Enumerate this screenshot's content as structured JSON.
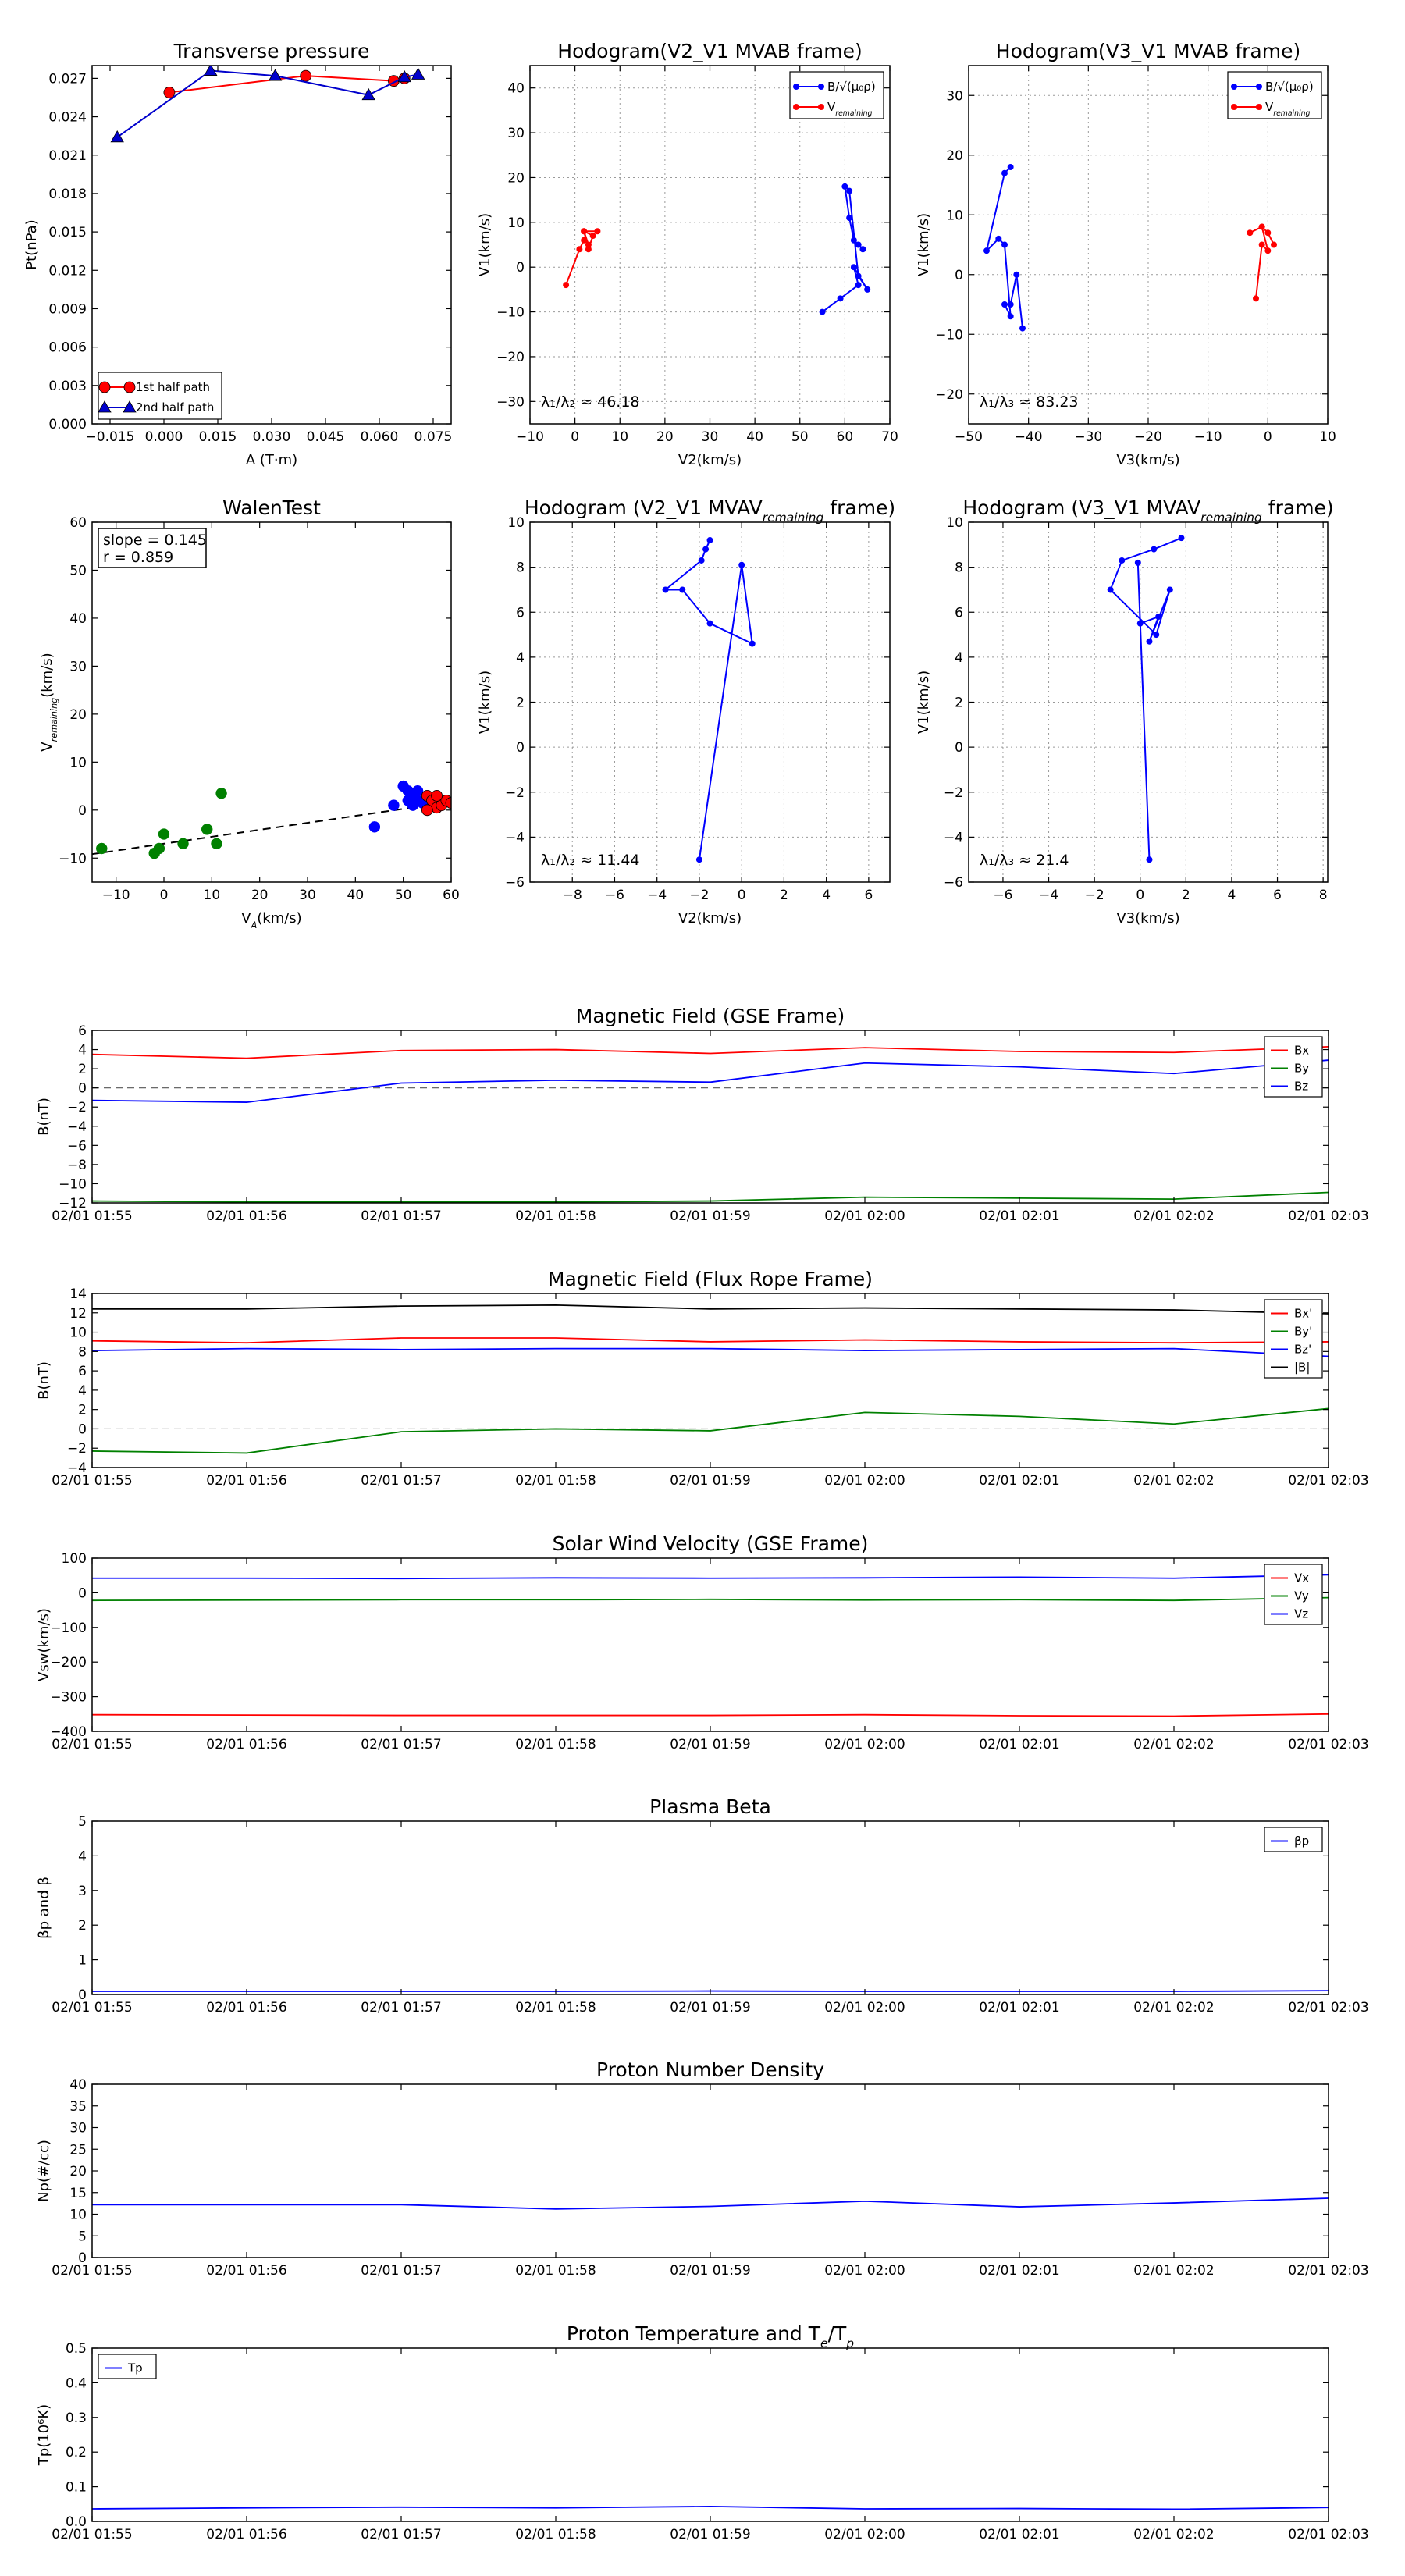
{
  "chart_data": [
    {
      "id": "transverse-pressure",
      "type": "line",
      "title": "Transverse pressure",
      "xlabel": "A (T·m)",
      "ylabel": "Pt(nPa)",
      "xlim": [
        -0.02,
        0.08
      ],
      "ylim": [
        0.0,
        0.028
      ],
      "xticks": [
        -0.015,
        0.0,
        0.015,
        0.03,
        0.045,
        0.06,
        0.075
      ],
      "xtick_labels": [
        "−0.015",
        "0.000",
        "0.015",
        "0.030",
        "0.045",
        "0.060",
        "0.075"
      ],
      "yticks": [
        0.0,
        0.003,
        0.006,
        0.009,
        0.012,
        0.015,
        0.018,
        0.021,
        0.024,
        0.027
      ],
      "ytick_labels": [
        "0.000",
        "0.003",
        "0.006",
        "0.009",
        "0.012",
        "0.015",
        "0.018",
        "0.021",
        "0.024",
        "0.027"
      ],
      "grid": false,
      "legend": "lower-left",
      "series": [
        {
          "name": "1st half path",
          "color": "#ff0000",
          "marker": "circle",
          "x": [
            0.0015,
            0.0395,
            0.064,
            0.067
          ],
          "y": [
            0.0259,
            0.0272,
            0.0268,
            0.027
          ]
        },
        {
          "name": "2nd half path",
          "color": "#0000cc",
          "marker": "triangle",
          "x": [
            0.0708,
            0.067,
            0.057,
            0.031,
            0.013,
            -0.013
          ],
          "y": [
            0.0273,
            0.0271,
            0.0257,
            0.0272,
            0.0276,
            0.0224
          ]
        }
      ]
    },
    {
      "id": "hodogram-v2-v1-mvab",
      "type": "line",
      "title": "Hodogram(V2_V1 MVAB frame)",
      "xlabel": "V2(km/s)",
      "ylabel": "V1(km/s)",
      "xlim": [
        -10,
        70
      ],
      "ylim": [
        -35,
        45
      ],
      "xticks": [
        -10,
        0,
        10,
        20,
        30,
        40,
        50,
        60,
        70
      ],
      "xtick_labels": [
        "−10",
        "0",
        "10",
        "20",
        "30",
        "40",
        "50",
        "60",
        "70"
      ],
      "yticks": [
        -30,
        -20,
        -10,
        0,
        10,
        20,
        30,
        40
      ],
      "ytick_labels": [
        "−30",
        "−20",
        "−10",
        "0",
        "10",
        "20",
        "30",
        "40"
      ],
      "grid": true,
      "legend": "top-right",
      "legend_labels": [
        "B/√(μ₀ρ)",
        "V"
      ],
      "legend_subscripts": [
        "",
        "remaining"
      ],
      "annotation": "λ₁/λ₂ ≈ 46.18",
      "series": [
        {
          "name": "B/√(μ₀ρ)",
          "color": "#0000ff",
          "marker": "dot",
          "x": [
            55,
            59,
            63,
            62,
            65,
            63,
            61,
            60,
            61,
            62,
            63,
            64
          ],
          "y": [
            -10,
            -7,
            -4,
            0,
            -5,
            -2,
            17,
            18,
            11,
            6,
            5,
            4
          ]
        },
        {
          "name": "Vremaining",
          "color": "#ff0000",
          "marker": "dot",
          "x": [
            -2,
            1,
            2,
            3,
            2,
            3,
            4,
            2,
            5
          ],
          "y": [
            -4,
            4,
            6,
            5,
            8,
            4,
            7,
            8,
            8
          ]
        }
      ]
    },
    {
      "id": "hodogram-v3-v1-mvab",
      "type": "line",
      "title": "Hodogram(V3_V1 MVAB frame)",
      "xlabel": "V3(km/s)",
      "ylabel": "V1(km/s)",
      "xlim": [
        -50,
        10
      ],
      "ylim": [
        -25,
        35
      ],
      "xticks": [
        -50,
        -40,
        -30,
        -20,
        -10,
        0,
        10
      ],
      "xtick_labels": [
        "−50",
        "−40",
        "−30",
        "−20",
        "−10",
        "0",
        "10"
      ],
      "yticks": [
        -20,
        -10,
        0,
        10,
        20,
        30
      ],
      "ytick_labels": [
        "−20",
        "−10",
        "0",
        "10",
        "20",
        "30"
      ],
      "grid": true,
      "legend": "top-right",
      "legend_labels": [
        "B/√(μ₀ρ)",
        "V"
      ],
      "legend_subscripts": [
        "",
        "remaining"
      ],
      "annotation": "λ₁/λ₃ ≈ 83.23",
      "series": [
        {
          "name": "B/√(μ₀ρ)",
          "color": "#0000ff",
          "marker": "dot",
          "x": [
            -41,
            -42,
            -43,
            -44,
            -43,
            -44,
            -45,
            -47,
            -44,
            -43
          ],
          "y": [
            -9,
            0,
            -5,
            -5,
            -7,
            5,
            6,
            4,
            17,
            18
          ]
        },
        {
          "name": "Vremaining",
          "color": "#ff0000",
          "marker": "dot",
          "x": [
            -2,
            -1,
            0,
            -1,
            -3,
            -1,
            0,
            1
          ],
          "y": [
            -4,
            5,
            4,
            8,
            7,
            8,
            7,
            5
          ]
        }
      ]
    },
    {
      "id": "walen-test",
      "type": "scatter",
      "title": "WalenTest",
      "xlabel": "V",
      "xlabel_subscript": "A",
      "xlabel_suffix": "(km/s)",
      "ylabel": "V",
      "ylabel_subscript": "remaining",
      "ylabel_suffix": "(km/s)",
      "xlim": [
        -15,
        60
      ],
      "ylim": [
        -15,
        60
      ],
      "xticks": [
        -10,
        0,
        10,
        20,
        30,
        40,
        50,
        60
      ],
      "xtick_labels": [
        "−10",
        "0",
        "10",
        "20",
        "30",
        "40",
        "50",
        "60"
      ],
      "yticks": [
        -10,
        0,
        10,
        20,
        30,
        40,
        50,
        60
      ],
      "ytick_labels": [
        "−10",
        "0",
        "10",
        "20",
        "30",
        "40",
        "50",
        "60"
      ],
      "grid": false,
      "annotation_lines": [
        "slope = 0.145",
        "r = 0.859"
      ],
      "fit_line": {
        "slope": 0.145,
        "intercept": -7.0,
        "color": "#000000",
        "style": "dashed"
      },
      "series": [
        {
          "name": "",
          "color": "#008000",
          "marker": "circle",
          "x": [
            -13,
            -2,
            -1,
            0,
            4,
            9,
            11,
            12
          ],
          "y": [
            -8,
            -9,
            -8,
            -5,
            -7,
            -4,
            -7,
            3.5
          ]
        },
        {
          "name": "",
          "color": "#0000ff",
          "marker": "circle",
          "x": [
            44,
            48,
            50,
            51,
            52,
            53,
            51,
            54,
            53,
            52
          ],
          "y": [
            -3.5,
            1,
            5,
            4,
            3,
            2,
            2,
            1.5,
            4,
            1
          ]
        },
        {
          "name": "",
          "color": "#ff0000",
          "marker": "circle",
          "x": [
            55,
            56,
            57,
            58,
            55,
            59,
            60,
            57
          ],
          "y": [
            3,
            2,
            0.5,
            1,
            0,
            2,
            1.5,
            3
          ]
        }
      ]
    },
    {
      "id": "hodogram-v2-v1-mvav",
      "type": "line",
      "title": "Hodogram (V2_V1 MVAV",
      "title_subscript": "remaining",
      "title_suffix": " frame)",
      "xlabel": "V2(km/s)",
      "ylabel": "V1(km/s)",
      "xlim": [
        -10,
        7
      ],
      "ylim": [
        -6,
        10
      ],
      "xticks": [
        -8,
        -6,
        -4,
        -2,
        0,
        2,
        4,
        6
      ],
      "xtick_labels": [
        "−8",
        "−6",
        "−4",
        "−2",
        "0",
        "2",
        "4",
        "6"
      ],
      "yticks": [
        -6,
        -4,
        -2,
        0,
        2,
        4,
        6,
        8,
        10
      ],
      "ytick_labels": [
        "−6",
        "−4",
        "−2",
        "0",
        "2",
        "4",
        "6",
        "8",
        "10"
      ],
      "grid": true,
      "annotation": "λ₁/λ₂ ≈ 11.44",
      "series": [
        {
          "name": "",
          "color": "#0000ff",
          "marker": "dot",
          "x": [
            -2,
            0,
            0.5,
            -1.5,
            -2.8,
            -3.6,
            -1.9,
            -1.7,
            -1.5
          ],
          "y": [
            -5,
            8.1,
            4.6,
            5.5,
            7.0,
            7.0,
            8.3,
            8.8,
            9.2
          ]
        }
      ]
    },
    {
      "id": "hodogram-v3-v1-mvav",
      "type": "line",
      "title": "Hodogram (V3_V1 MVAV",
      "title_subscript": "remaining",
      "title_suffix": " frame)",
      "xlabel": "V3(km/s)",
      "ylabel": "V1(km/s)",
      "xlim": [
        -7.5,
        8.2
      ],
      "ylim": [
        -6,
        10
      ],
      "xticks": [
        -6,
        -4,
        -2,
        0,
        2,
        4,
        6,
        8
      ],
      "xtick_labels": [
        "−6",
        "−4",
        "−2",
        "0",
        "2",
        "4",
        "6",
        "8"
      ],
      "yticks": [
        -6,
        -4,
        -2,
        0,
        2,
        4,
        6,
        8,
        10
      ],
      "ytick_labels": [
        "−6",
        "−4",
        "−2",
        "0",
        "2",
        "4",
        "6",
        "8",
        "10"
      ],
      "grid": true,
      "annotation": "λ₁/λ₃ ≈ 21.4",
      "series": [
        {
          "name": "",
          "color": "#0000ff",
          "marker": "dot",
          "x": [
            0.4,
            -0.1,
            0.0,
            0.8,
            0.4,
            1.3,
            0.7,
            -1.3,
            -0.8,
            0.6,
            1.8
          ],
          "y": [
            -5,
            8.2,
            5.5,
            5.8,
            4.7,
            7.0,
            5.0,
            7.0,
            8.3,
            8.8,
            9.3
          ]
        }
      ]
    },
    {
      "id": "magnetic-field-gse",
      "type": "line",
      "title": "Magnetic Field (GSE Frame)",
      "xlabel": "",
      "ylabel": "B(nT)",
      "x": [
        0,
        1,
        2,
        3,
        4,
        5,
        6,
        7,
        8
      ],
      "xtick_labels": [
        "02/01 01:55",
        "02/01 01:56",
        "02/01 01:57",
        "02/01 01:58",
        "02/01 01:59",
        "02/01 02:00",
        "02/01 02:01",
        "02/01 02:02",
        "02/01 02:03"
      ],
      "ylim": [
        -12,
        6
      ],
      "yticks": [
        -12,
        -10,
        -8,
        -6,
        -4,
        -2,
        0,
        2,
        4,
        6
      ],
      "ytick_labels": [
        "−12",
        "−10",
        "−8",
        "−6",
        "−4",
        "−2",
        "0",
        "2",
        "4",
        "6"
      ],
      "zero_line": true,
      "legend": "top-right",
      "series": [
        {
          "name": "Bx",
          "color": "#ff0000",
          "values": [
            3.5,
            3.1,
            3.9,
            4.0,
            3.6,
            4.2,
            3.8,
            3.7,
            4.3
          ]
        },
        {
          "name": "By",
          "color": "#008000",
          "values": [
            -11.8,
            -11.9,
            -11.9,
            -11.9,
            -11.8,
            -11.4,
            -11.5,
            -11.6,
            -10.9
          ]
        },
        {
          "name": "Bz",
          "color": "#0000ff",
          "values": [
            -1.3,
            -1.5,
            0.5,
            0.8,
            0.6,
            2.6,
            2.2,
            1.5,
            2.9
          ]
        }
      ]
    },
    {
      "id": "magnetic-field-flux-rope",
      "type": "line",
      "title": "Magnetic Field (Flux Rope Frame)",
      "xlabel": "",
      "ylabel": "B(nT)",
      "x": [
        0,
        1,
        2,
        3,
        4,
        5,
        6,
        7,
        8
      ],
      "xtick_labels": [
        "02/01 01:55",
        "02/01 01:56",
        "02/01 01:57",
        "02/01 01:58",
        "02/01 01:59",
        "02/01 02:00",
        "02/01 02:01",
        "02/01 02:02",
        "02/01 02:03"
      ],
      "ylim": [
        -4,
        14
      ],
      "yticks": [
        -4,
        -2,
        0,
        2,
        4,
        6,
        8,
        10,
        12,
        14
      ],
      "ytick_labels": [
        "−4",
        "−2",
        "0",
        "2",
        "4",
        "6",
        "8",
        "10",
        "12",
        "14"
      ],
      "zero_line": true,
      "legend": "top-right",
      "series": [
        {
          "name": "Bx'",
          "color": "#ff0000",
          "values": [
            9.1,
            8.9,
            9.4,
            9.4,
            9.0,
            9.2,
            9.0,
            8.9,
            9.0
          ]
        },
        {
          "name": "By'",
          "color": "#008000",
          "values": [
            -2.3,
            -2.5,
            -0.3,
            0.0,
            -0.2,
            1.7,
            1.3,
            0.5,
            2.1
          ]
        },
        {
          "name": "Bz'",
          "color": "#0000ff",
          "values": [
            8.1,
            8.3,
            8.2,
            8.3,
            8.3,
            8.1,
            8.2,
            8.3,
            7.5
          ]
        },
        {
          "name": "|B|",
          "color": "#000000",
          "values": [
            12.4,
            12.4,
            12.7,
            12.8,
            12.4,
            12.5,
            12.4,
            12.3,
            11.9
          ]
        }
      ]
    },
    {
      "id": "solar-wind-velocity",
      "type": "line",
      "title": "Solar Wind Velocity (GSE Frame)",
      "xlabel": "",
      "ylabel": "Vsw(km/s)",
      "x": [
        0,
        1,
        2,
        3,
        4,
        5,
        6,
        7,
        8
      ],
      "xtick_labels": [
        "02/01 01:55",
        "02/01 01:56",
        "02/01 01:57",
        "02/01 01:58",
        "02/01 01:59",
        "02/01 02:00",
        "02/01 02:01",
        "02/01 02:02",
        "02/01 02:03"
      ],
      "ylim": [
        -400,
        100
      ],
      "yticks": [
        -400,
        -300,
        -200,
        -100,
        0,
        100
      ],
      "ytick_labels": [
        "−400",
        "−300",
        "−200",
        "−100",
        "0",
        "100"
      ],
      "legend": "top-right",
      "series": [
        {
          "name": "Vx",
          "color": "#ff0000",
          "values": [
            -352,
            -353,
            -354,
            -354,
            -354,
            -352,
            -355,
            -356,
            -350
          ]
        },
        {
          "name": "Vy",
          "color": "#008000",
          "values": [
            -22,
            -21,
            -20,
            -20,
            -19,
            -21,
            -20,
            -22,
            -14
          ]
        },
        {
          "name": "Vz",
          "color": "#0000ff",
          "values": [
            42,
            42,
            41,
            43,
            42,
            43,
            45,
            42,
            52
          ]
        }
      ]
    },
    {
      "id": "plasma-beta",
      "type": "line",
      "title": "Plasma Beta",
      "xlabel": "",
      "ylabel": "βp and β",
      "x": [
        0,
        1,
        2,
        3,
        4,
        5,
        6,
        7,
        8
      ],
      "xtick_labels": [
        "02/01 01:55",
        "02/01 01:56",
        "02/01 01:57",
        "02/01 01:58",
        "02/01 01:59",
        "02/01 02:00",
        "02/01 02:01",
        "02/01 02:02",
        "02/01 02:03"
      ],
      "ylim": [
        0,
        5
      ],
      "yticks": [
        0,
        1,
        2,
        3,
        4,
        5
      ],
      "ytick_labels": [
        "0",
        "1",
        "2",
        "3",
        "4",
        "5"
      ],
      "legend": "top-right",
      "series": [
        {
          "name": "βp",
          "color": "#0000ff",
          "values": [
            0.09,
            0.09,
            0.09,
            0.09,
            0.1,
            0.09,
            0.09,
            0.09,
            0.11
          ]
        }
      ]
    },
    {
      "id": "proton-number-density",
      "type": "line",
      "title": "Proton Number Density",
      "xlabel": "",
      "ylabel": "Np(#/cc)",
      "x": [
        0,
        1,
        2,
        3,
        4,
        5,
        6,
        7,
        8
      ],
      "xtick_labels": [
        "02/01 01:55",
        "02/01 01:56",
        "02/01 01:57",
        "02/01 01:58",
        "02/01 01:59",
        "02/01 02:00",
        "02/01 02:01",
        "02/01 02:02",
        "02/01 02:03"
      ],
      "ylim": [
        0,
        40
      ],
      "yticks": [
        0,
        5,
        10,
        15,
        20,
        25,
        30,
        35,
        40
      ],
      "ytick_labels": [
        "0",
        "5",
        "10",
        "15",
        "20",
        "25",
        "30",
        "35",
        "40"
      ],
      "series": [
        {
          "name": "",
          "color": "#0000ff",
          "values": [
            12.2,
            12.2,
            12.2,
            11.2,
            11.8,
            13.0,
            11.7,
            12.6,
            13.7
          ]
        }
      ]
    },
    {
      "id": "proton-temperature",
      "type": "line",
      "title": "Proton Temperature and T",
      "title_sub1": "e",
      "title_mid": "/T",
      "title_sub2": "p",
      "xlabel": "",
      "ylabel": "Tp(10⁶K)",
      "x": [
        0,
        1,
        2,
        3,
        4,
        5,
        6,
        7,
        8
      ],
      "xtick_labels": [
        "02/01 01:55",
        "02/01 01:56",
        "02/01 01:57",
        "02/01 01:58",
        "02/01 01:59",
        "02/01 02:00",
        "02/01 02:01",
        "02/01 02:02",
        "02/01 02:03"
      ],
      "ylim": [
        0,
        0.5
      ],
      "yticks": [
        0.0,
        0.1,
        0.2,
        0.3,
        0.4,
        0.5
      ],
      "ytick_labels": [
        "0.0",
        "0.1",
        "0.2",
        "0.3",
        "0.4",
        "0.5"
      ],
      "legend": "top-left",
      "series": [
        {
          "name": "Tp",
          "color": "#0000ff",
          "values": [
            0.036,
            0.039,
            0.041,
            0.039,
            0.043,
            0.036,
            0.037,
            0.035,
            0.04
          ]
        }
      ]
    }
  ]
}
